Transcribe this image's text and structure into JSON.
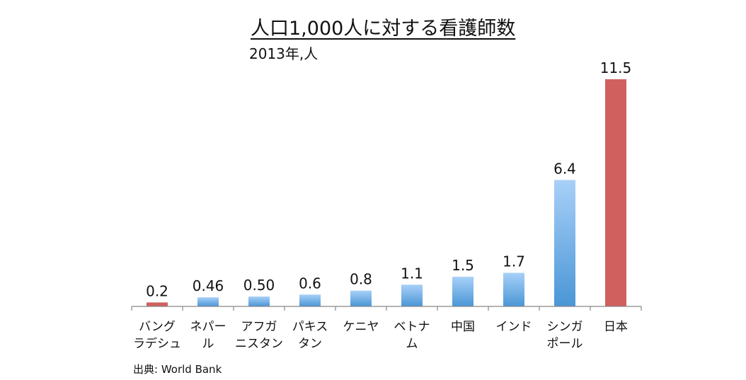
{
  "chart_data": {
    "type": "bar",
    "title": "人口1,000人に対する看護師数",
    "subtitle": "2013年,人",
    "source": "出典: World Bank",
    "categories": [
      [
        "バング",
        "ラデシュ"
      ],
      [
        "ネパー",
        "ル"
      ],
      [
        "アフガ",
        "ニスタン"
      ],
      [
        "パキス",
        "タン"
      ],
      [
        "ケニヤ"
      ],
      [
        "ベトナ",
        "ム"
      ],
      [
        "中国"
      ],
      [
        "インド"
      ],
      [
        "シンガ",
        "ポール"
      ],
      [
        "日本"
      ]
    ],
    "values": [
      0.2,
      0.46,
      0.5,
      0.6,
      0.8,
      1.1,
      1.5,
      1.7,
      6.4,
      11.5
    ],
    "value_labels": [
      "0.2",
      "0.46",
      "0.50",
      "0.6",
      "0.8",
      "1.1",
      "1.5",
      "1.7",
      "6.4",
      "11.5"
    ],
    "highlight": [
      true,
      false,
      false,
      false,
      false,
      false,
      false,
      false,
      false,
      true
    ],
    "colors": {
      "highlight": "#d0605e",
      "bar_top": "#a8d0f8",
      "bar_bottom": "#4a96d6",
      "axis": "#888888"
    },
    "ylim": [
      0,
      11.5
    ],
    "grid": false,
    "legend": "none"
  }
}
